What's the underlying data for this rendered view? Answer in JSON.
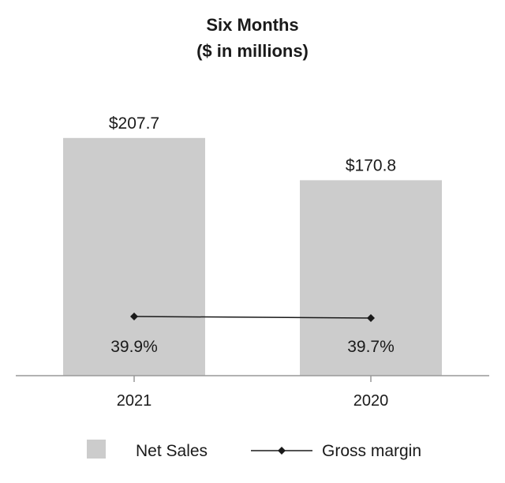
{
  "chart_data": {
    "type": "bar",
    "title": "Six Months",
    "subtitle": "($ in millions)",
    "categories": [
      "2021",
      "2020"
    ],
    "series": [
      {
        "name": "Net Sales",
        "type": "bar",
        "values": [
          207.7,
          170.8
        ],
        "labels": [
          "$207.7",
          "$170.8"
        ],
        "color": "#cccccc"
      },
      {
        "name": "Gross margin",
        "type": "line",
        "values": [
          39.9,
          39.7
        ],
        "labels": [
          "39.9%",
          "39.7%"
        ],
        "color": "#1a1a1a",
        "marker": "diamond"
      }
    ],
    "ylim": [
      0,
      250
    ],
    "grid": false,
    "legend_position": "bottom"
  }
}
